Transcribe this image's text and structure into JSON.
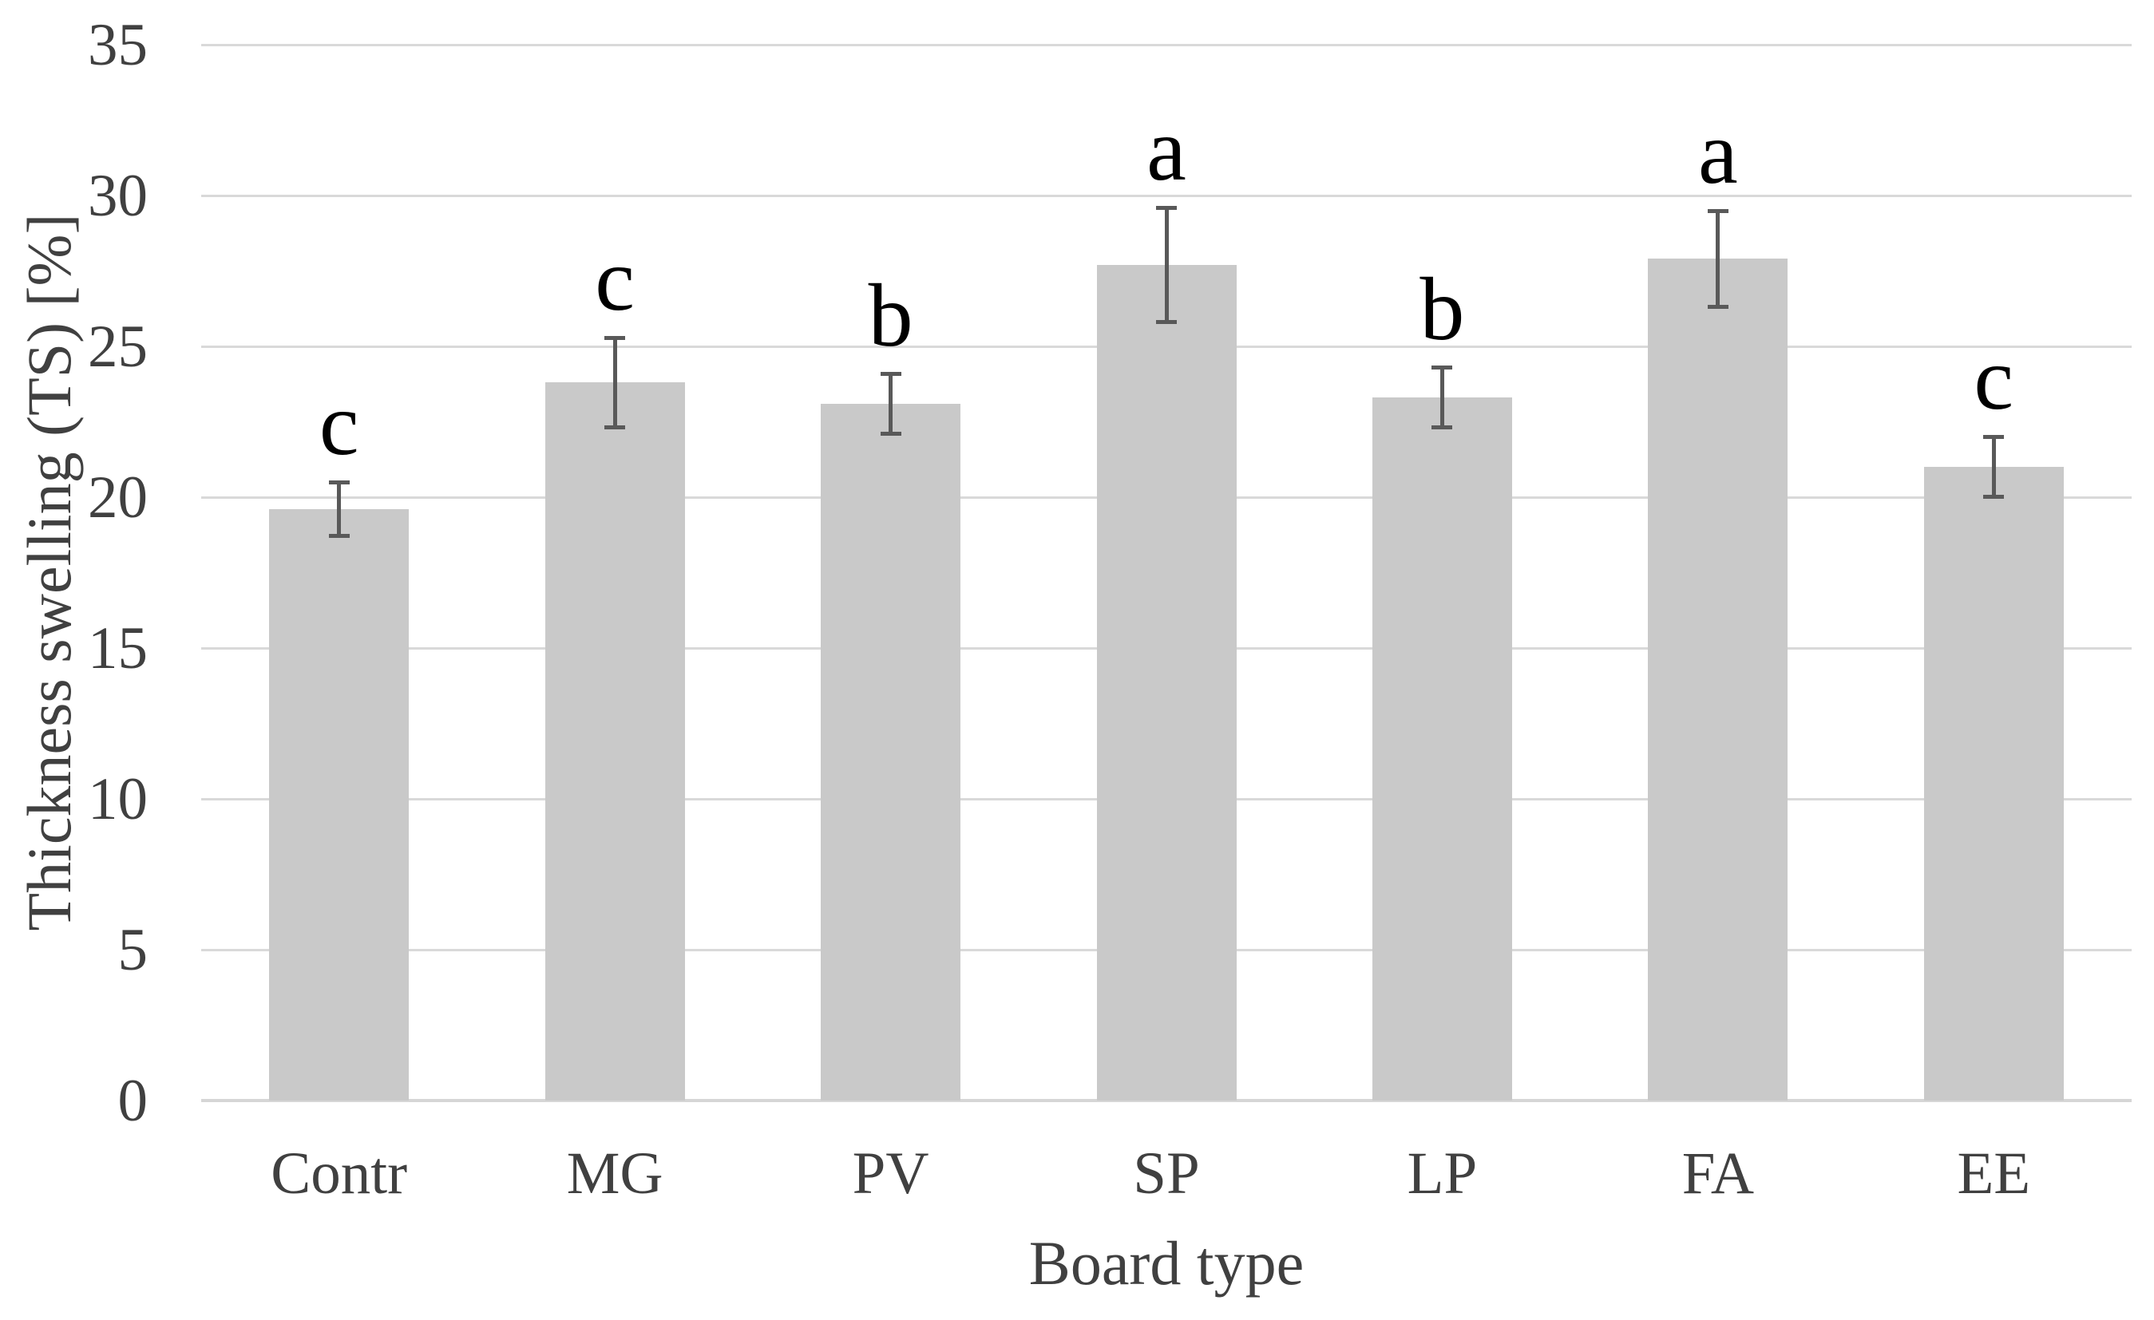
{
  "chart_data": {
    "type": "bar",
    "title": "",
    "xlabel": "Board type",
    "ylabel": "Thickness swelling (TS) [%]",
    "categories": [
      "Contr",
      "MG",
      "PV",
      "SP",
      "LP",
      "FA",
      "EE"
    ],
    "values": [
      19.6,
      23.8,
      23.1,
      27.7,
      23.3,
      27.9,
      21.0
    ],
    "error_bars": [
      0.9,
      1.5,
      1.0,
      1.9,
      1.0,
      1.6,
      1.0
    ],
    "significance_letters": [
      "c",
      "c",
      "b",
      "a",
      "b",
      "a",
      "c"
    ],
    "yticks": [
      "0",
      "5",
      "10",
      "15",
      "20",
      "25",
      "30",
      "35"
    ],
    "ylim": [
      0,
      35
    ],
    "grid": true,
    "legend_position": "none",
    "bar_color": "#c9c9c9",
    "error_bar_color": "#595959",
    "gridline_color": "#d9d9d9",
    "axis_line_color": "#d6d6d6",
    "axis_text_color": "#404040",
    "letter_color": "#000000",
    "background_color": "#ffffff"
  }
}
